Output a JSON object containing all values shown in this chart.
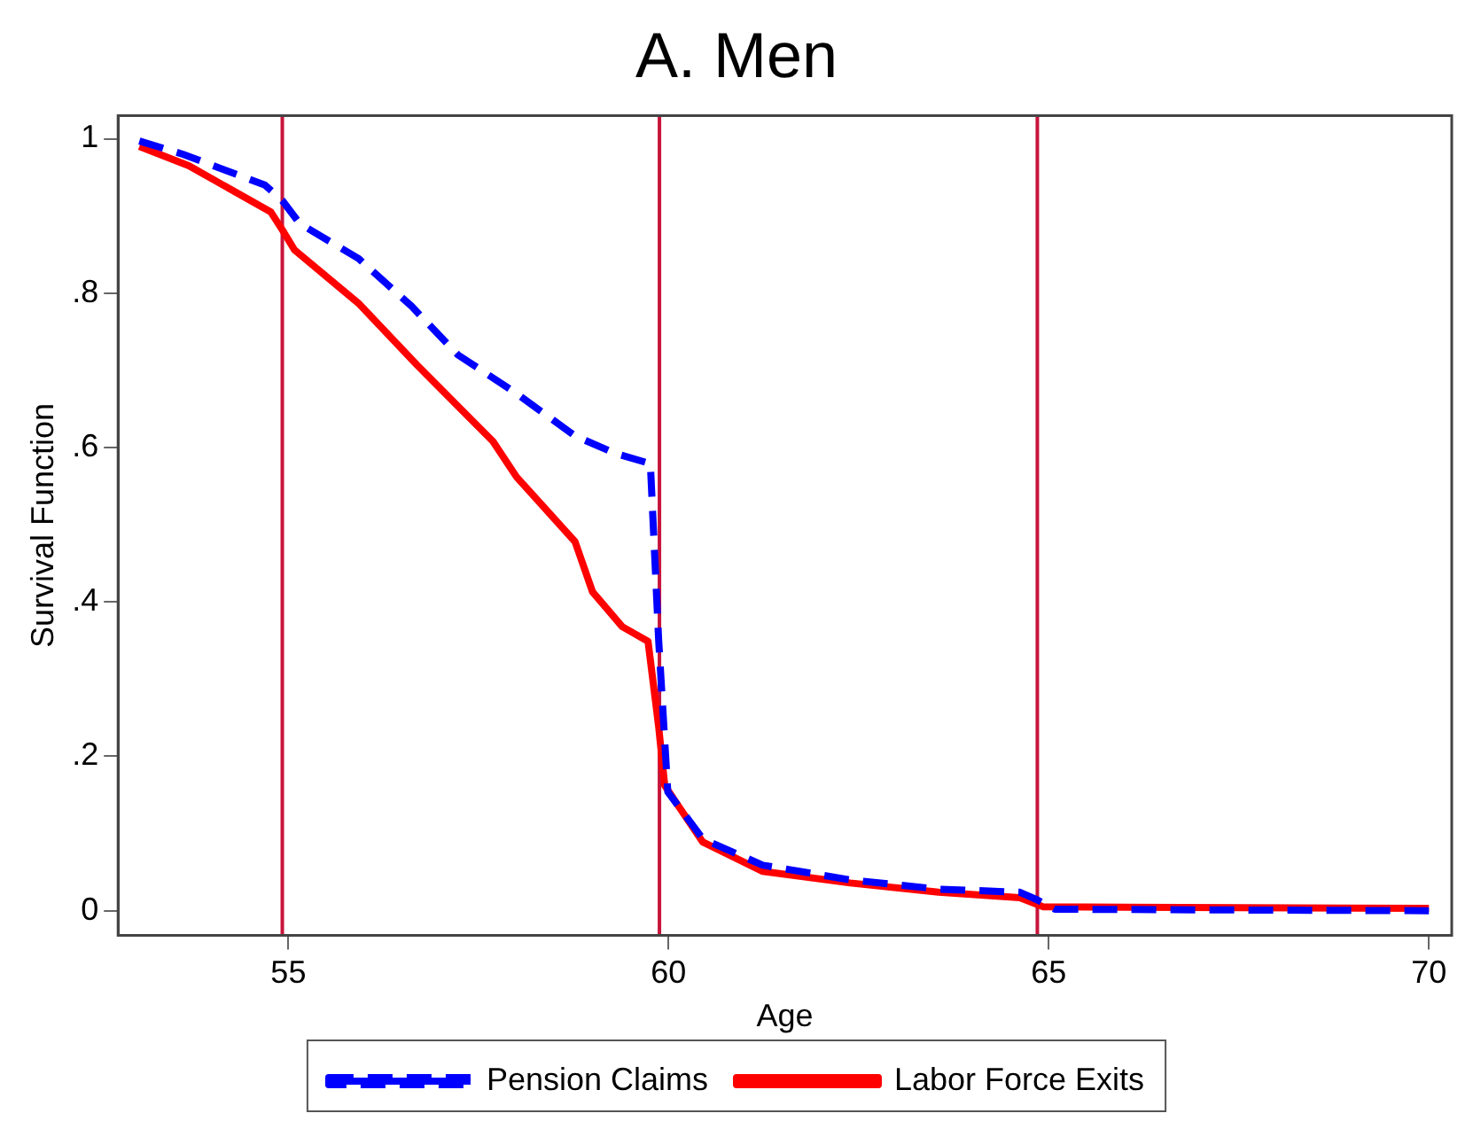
{
  "chart_data": {
    "type": "line",
    "title": "A. Men",
    "xlabel": "Age",
    "ylabel": "Survival Function",
    "xlim": [
      52.76,
      70.3
    ],
    "xticks": [
      55,
      60,
      65,
      70
    ],
    "ylim": [
      -0.032,
      1.03
    ],
    "yticks": [
      {
        "value": 0,
        "label": "0"
      },
      {
        "value": 0.2,
        "label": ".2"
      },
      {
        "value": 0.4,
        "label": ".4"
      },
      {
        "value": 0.6,
        "label": ".6"
      },
      {
        "value": 0.8,
        "label": ".8"
      },
      {
        "value": 1,
        "label": "1"
      }
    ],
    "grid": false,
    "legend": "bottom",
    "marker": "none",
    "ref_lines": [
      {
        "axis": "x",
        "value": 54.92,
        "color": "#c8143c"
      },
      {
        "axis": "x",
        "value": 59.88,
        "color": "#c8143c"
      },
      {
        "axis": "x",
        "value": 64.85,
        "color": "#c8143c"
      }
    ],
    "series": [
      {
        "name": "Pension Claims",
        "color": "#0000ff",
        "line_style": "dashed",
        "x": [
          53.04,
          53.61,
          54.69,
          54.92,
          55.15,
          55.92,
          56.62,
          57.23,
          58.0,
          58.77,
          59.31,
          59.73,
          59.76,
          59.87,
          59.99,
          60.45,
          61.24,
          62.39,
          63.55,
          64.62,
          64.85,
          65.08,
          70.0
        ],
        "values": [
          0.997,
          0.98,
          0.94,
          0.92,
          0.89,
          0.845,
          0.783,
          0.72,
          0.67,
          0.615,
          0.592,
          0.58,
          0.58,
          0.35,
          0.154,
          0.093,
          0.059,
          0.04,
          0.028,
          0.024,
          0.014,
          0.002,
          0.0
        ]
      },
      {
        "name": "Labor Force Exits",
        "color": "#ff0000",
        "line_style": "solid",
        "x": [
          53.04,
          53.69,
          54.77,
          54.92,
          55.08,
          55.92,
          56.69,
          57.69,
          58.0,
          58.77,
          59.0,
          59.39,
          59.73,
          59.87,
          59.95,
          60.45,
          61.24,
          62.39,
          63.55,
          64.62,
          64.93,
          70.0
        ],
        "values": [
          0.99,
          0.965,
          0.905,
          0.882,
          0.856,
          0.787,
          0.707,
          0.608,
          0.562,
          0.478,
          0.413,
          0.368,
          0.349,
          0.238,
          0.162,
          0.089,
          0.051,
          0.036,
          0.024,
          0.017,
          0.005,
          0.003
        ]
      }
    ]
  }
}
